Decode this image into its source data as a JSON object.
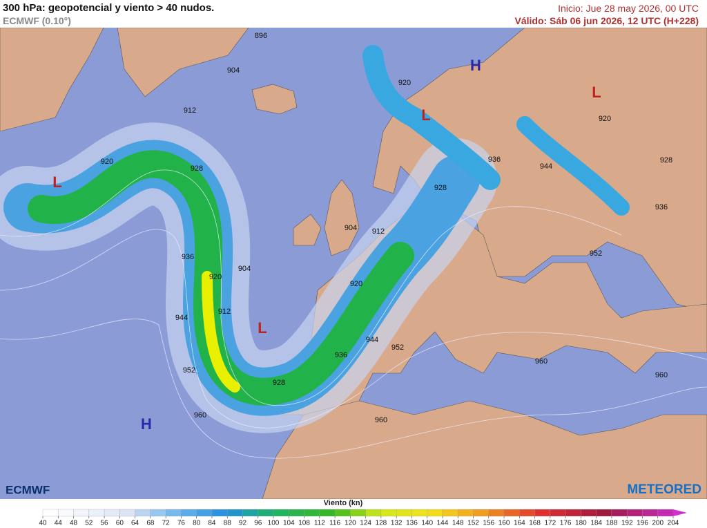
{
  "header": {
    "title": "300 hPa: geopotencial y viento > 40 nudos.",
    "model": "ECMWF (0.10°)",
    "init": "Inicio: Jue 28 may 2026, 00 UTC",
    "valid": "Válido: Sáb 06 jun 2026, 12 UTC (H+228)"
  },
  "map": {
    "contour_labels": [
      "896",
      "904",
      "912",
      "920",
      "928",
      "936",
      "920",
      "904",
      "912",
      "944",
      "952",
      "960",
      "928",
      "936",
      "944",
      "952",
      "960",
      "920",
      "912",
      "904",
      "928",
      "936",
      "944",
      "920",
      "920",
      "928",
      "936",
      "952",
      "960",
      "960"
    ],
    "pressure_centers": [
      "L",
      "L",
      "L",
      "H",
      "L",
      "H"
    ]
  },
  "logos": {
    "left": "ECMWF",
    "right": "METEORED"
  },
  "legend": {
    "title": "Viento (kn)",
    "ticks": [
      40,
      44,
      48,
      52,
      56,
      60,
      64,
      68,
      72,
      76,
      80,
      84,
      88,
      92,
      96,
      100,
      104,
      108,
      112,
      116,
      120,
      124,
      128,
      132,
      136,
      140,
      144,
      148,
      152,
      156,
      160,
      164,
      168,
      172,
      176,
      180,
      184,
      188,
      192,
      196,
      200,
      204
    ]
  }
}
